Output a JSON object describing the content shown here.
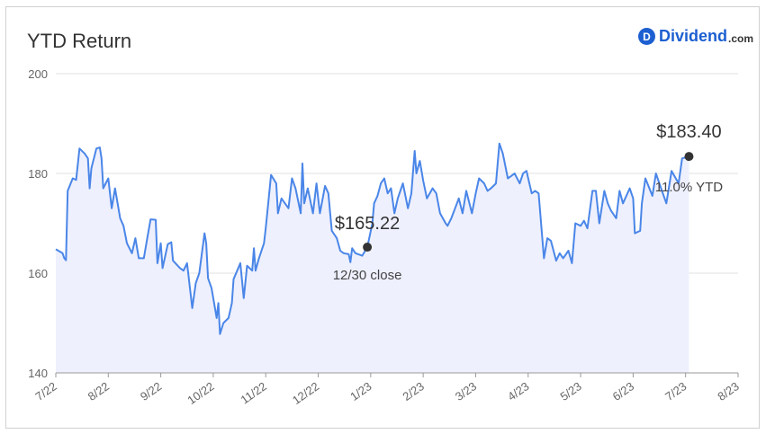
{
  "header": {
    "title": "YTD Return"
  },
  "brand": {
    "badge": "D",
    "name": "Dividend",
    "tld": ".com"
  },
  "colors": {
    "line": "#4a86e8",
    "area": "#eef0fd",
    "grid": "#e0e0e0",
    "marker": "#333333"
  },
  "chart_data": {
    "type": "area",
    "title": "YTD Return",
    "xlabel": "",
    "ylabel": "",
    "ylim": [
      140,
      200
    ],
    "yticks": [
      140,
      160,
      180,
      200
    ],
    "xticks": [
      "7/22",
      "8/22",
      "9/22",
      "10/22",
      "11/22",
      "12/22",
      "1/23",
      "2/23",
      "3/23",
      "4/23",
      "5/23",
      "6/23",
      "7/23",
      "8/23"
    ],
    "grid": true,
    "series": [
      {
        "values": [
          [
            "2022-07-01",
            164.8
          ],
          [
            "2022-07-05",
            164.0
          ],
          [
            "2022-07-06",
            163.0
          ],
          [
            "2022-07-07",
            162.6
          ],
          [
            "2022-07-08",
            176.5
          ],
          [
            "2022-07-11",
            179.0
          ],
          [
            "2022-07-13",
            178.7
          ],
          [
            "2022-07-15",
            185.0
          ],
          [
            "2022-07-18",
            184.0
          ],
          [
            "2022-07-20",
            183.0
          ],
          [
            "2022-07-21",
            177.0
          ],
          [
            "2022-07-22",
            181.0
          ],
          [
            "2022-07-25",
            185.0
          ],
          [
            "2022-07-27",
            185.2
          ],
          [
            "2022-07-28",
            183.0
          ],
          [
            "2022-07-29",
            177.0
          ],
          [
            "2022-08-01",
            179.0
          ],
          [
            "2022-08-03",
            173.0
          ],
          [
            "2022-08-05",
            177.0
          ],
          [
            "2022-08-08",
            171.0
          ],
          [
            "2022-08-10",
            169.5
          ],
          [
            "2022-08-12",
            166.0
          ],
          [
            "2022-08-15",
            164.0
          ],
          [
            "2022-08-17",
            167.0
          ],
          [
            "2022-08-19",
            163.0
          ],
          [
            "2022-08-22",
            163.0
          ],
          [
            "2022-08-24",
            167.0
          ],
          [
            "2022-08-26",
            170.8
          ],
          [
            "2022-08-29",
            170.7
          ],
          [
            "2022-08-30",
            162.0
          ],
          [
            "2022-09-01",
            166.0
          ],
          [
            "2022-09-02",
            161.0
          ],
          [
            "2022-09-05",
            165.8
          ],
          [
            "2022-09-07",
            166.2
          ],
          [
            "2022-09-08",
            162.5
          ],
          [
            "2022-09-12",
            161.0
          ],
          [
            "2022-09-14",
            160.5
          ],
          [
            "2022-09-16",
            162.0
          ],
          [
            "2022-09-19",
            153.0
          ],
          [
            "2022-09-21",
            158.0
          ],
          [
            "2022-09-23",
            160.0
          ],
          [
            "2022-09-26",
            168.0
          ],
          [
            "2022-09-27",
            166.0
          ],
          [
            "2022-09-28",
            159.0
          ],
          [
            "2022-09-30",
            157.0
          ],
          [
            "2022-10-03",
            151.0
          ],
          [
            "2022-10-04",
            154.0
          ],
          [
            "2022-10-05",
            147.8
          ],
          [
            "2022-10-07",
            150.0
          ],
          [
            "2022-10-10",
            151.0
          ],
          [
            "2022-10-12",
            154.0
          ],
          [
            "2022-10-13",
            158.8
          ],
          [
            "2022-10-17",
            162.0
          ],
          [
            "2022-10-19",
            155.0
          ],
          [
            "2022-10-21",
            161.5
          ],
          [
            "2022-10-24",
            160.5
          ],
          [
            "2022-10-25",
            165.0
          ],
          [
            "2022-10-26",
            160.5
          ],
          [
            "2022-10-28",
            163.0
          ],
          [
            "2022-10-31",
            166.0
          ],
          [
            "2022-11-01",
            169.0
          ],
          [
            "2022-11-03",
            176.0
          ],
          [
            "2022-11-04",
            179.7
          ],
          [
            "2022-11-07",
            178.0
          ],
          [
            "2022-11-08",
            172.0
          ],
          [
            "2022-11-10",
            175.0
          ],
          [
            "2022-11-14",
            173.0
          ],
          [
            "2022-11-16",
            179.0
          ],
          [
            "2022-11-18",
            177.0
          ],
          [
            "2022-11-21",
            172.0
          ],
          [
            "2022-11-22",
            182.0
          ],
          [
            "2022-11-23",
            174.0
          ],
          [
            "2022-11-25",
            177.0
          ],
          [
            "2022-11-28",
            172.0
          ],
          [
            "2022-11-30",
            178.0
          ],
          [
            "2022-12-02",
            172.0
          ],
          [
            "2022-12-05",
            177.5
          ],
          [
            "2022-12-07",
            176.0
          ],
          [
            "2022-12-09",
            168.5
          ],
          [
            "2022-12-12",
            167.0
          ],
          [
            "2022-12-14",
            164.5
          ],
          [
            "2022-12-16",
            164.0
          ],
          [
            "2022-12-19",
            163.8
          ],
          [
            "2022-12-20",
            162.2
          ],
          [
            "2022-12-21",
            165.0
          ],
          [
            "2022-12-23",
            164.0
          ],
          [
            "2022-12-27",
            163.5
          ],
          [
            "2022-12-30",
            165.22
          ],
          [
            "2023-01-02",
            170.0
          ],
          [
            "2023-01-03",
            174.0
          ],
          [
            "2023-01-05",
            175.5
          ],
          [
            "2023-01-07",
            178.0
          ],
          [
            "2023-01-09",
            179.0
          ],
          [
            "2023-01-11",
            176.0
          ],
          [
            "2023-01-13",
            177.0
          ],
          [
            "2023-01-15",
            172.0
          ],
          [
            "2023-01-17",
            175.0
          ],
          [
            "2023-01-20",
            178.0
          ],
          [
            "2023-01-23",
            173.0
          ],
          [
            "2023-01-25",
            176.0
          ],
          [
            "2023-01-27",
            184.5
          ],
          [
            "2023-01-28",
            180.0
          ],
          [
            "2023-01-30",
            182.5
          ],
          [
            "2023-02-01",
            178.5
          ],
          [
            "2023-02-03",
            175.0
          ],
          [
            "2023-02-06",
            177.0
          ],
          [
            "2023-02-08",
            176.0
          ],
          [
            "2023-02-10",
            172.0
          ],
          [
            "2023-02-13",
            170.0
          ],
          [
            "2023-02-14",
            169.5
          ],
          [
            "2023-02-16",
            171.0
          ],
          [
            "2023-02-18",
            173.0
          ],
          [
            "2023-02-20",
            175.0
          ],
          [
            "2023-02-22",
            172.0
          ],
          [
            "2023-02-24",
            176.5
          ],
          [
            "2023-02-27",
            172.0
          ],
          [
            "2023-03-01",
            176.0
          ],
          [
            "2023-03-03",
            179.0
          ],
          [
            "2023-03-06",
            178.0
          ],
          [
            "2023-03-08",
            176.5
          ],
          [
            "2023-03-10",
            177.0
          ],
          [
            "2023-03-13",
            178.0
          ],
          [
            "2023-03-15",
            186.0
          ],
          [
            "2023-03-17",
            184.0
          ],
          [
            "2023-03-20",
            179.0
          ],
          [
            "2023-03-22",
            179.5
          ],
          [
            "2023-03-24",
            180.0
          ],
          [
            "2023-03-27",
            178.0
          ],
          [
            "2023-03-29",
            180.0
          ],
          [
            "2023-03-31",
            180.5
          ],
          [
            "2023-04-03",
            176.0
          ],
          [
            "2023-04-05",
            176.5
          ],
          [
            "2023-04-07",
            176.0
          ],
          [
            "2023-04-10",
            163.0
          ],
          [
            "2023-04-12",
            167.0
          ],
          [
            "2023-04-14",
            166.5
          ],
          [
            "2023-04-17",
            162.5
          ],
          [
            "2023-04-19",
            164.0
          ],
          [
            "2023-04-21",
            163.0
          ],
          [
            "2023-04-24",
            164.5
          ],
          [
            "2023-04-26",
            162.0
          ],
          [
            "2023-04-28",
            170.0
          ],
          [
            "2023-05-01",
            169.5
          ],
          [
            "2023-05-03",
            170.5
          ],
          [
            "2023-05-05",
            169.0
          ],
          [
            "2023-05-08",
            176.5
          ],
          [
            "2023-05-10",
            176.5
          ],
          [
            "2023-05-12",
            170.0
          ],
          [
            "2023-05-15",
            176.5
          ],
          [
            "2023-05-17",
            174.0
          ],
          [
            "2023-05-19",
            172.5
          ],
          [
            "2023-05-22",
            171.0
          ],
          [
            "2023-05-24",
            176.5
          ],
          [
            "2023-05-26",
            174.0
          ],
          [
            "2023-05-30",
            177.0
          ],
          [
            "2023-06-01",
            175.0
          ],
          [
            "2023-06-02",
            168.0
          ],
          [
            "2023-06-05",
            168.5
          ],
          [
            "2023-06-06",
            174.0
          ],
          [
            "2023-06-08",
            179.0
          ],
          [
            "2023-06-12",
            175.5
          ],
          [
            "2023-06-14",
            180.0
          ],
          [
            "2023-06-16",
            178.0
          ],
          [
            "2023-06-20",
            174.0
          ],
          [
            "2023-06-23",
            180.5
          ],
          [
            "2023-06-27",
            178.0
          ],
          [
            "2023-06-29",
            183.0
          ],
          [
            "2023-07-03",
            183.4
          ]
        ]
      }
    ],
    "annotations": [
      {
        "date": "2022-12-30",
        "value": 165.22,
        "label": "$165.22",
        "sublabel": "12/30 close"
      },
      {
        "date": "2023-07-03",
        "value": 183.4,
        "label": "$183.40",
        "sublabel": "11.0% YTD"
      }
    ]
  }
}
